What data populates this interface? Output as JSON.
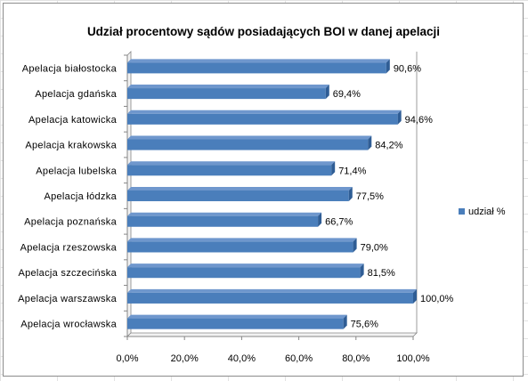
{
  "chart_data": {
    "type": "bar",
    "orientation": "horizontal",
    "title": "Udział procentowy sądów posiadających BOI w danej apelacji",
    "categories": [
      "Apelacja  białostocka",
      "Apelacja  gdańska",
      "Apelacja  katowicka",
      "Apelacja  krakowska",
      "Apelacja  lubelska",
      "Apelacja  łódzka",
      "Apelacja  poznańska",
      "Apelacja  rzeszowska",
      "Apelacja  szczecińska",
      "Apelacja  warszawska",
      "Apelacja  wrocławska"
    ],
    "series": [
      {
        "name": "udział %",
        "values": [
          90.6,
          69.4,
          94.6,
          84.2,
          71.4,
          77.5,
          66.7,
          79.0,
          81.5,
          100.0,
          75.6
        ],
        "labels": [
          "90,6%",
          "69,4%",
          "94,6%",
          "84,2%",
          "71,4%",
          "77,5%",
          "66,7%",
          "79,0%",
          "81,5%",
          "100,0%",
          "75,6%"
        ],
        "color": "#4a7ebb"
      }
    ],
    "xlim": [
      0,
      100
    ],
    "xticks": [
      0,
      20,
      40,
      60,
      80,
      100
    ],
    "xtick_labels": [
      "0,0%",
      "20,0%",
      "40,0%",
      "60,0%",
      "80,0%",
      "100,0%"
    ],
    "grid": false,
    "legend_position": "right"
  },
  "colors": {
    "bar_front": "#4a7ebb",
    "bar_top": "#6f97cd",
    "bar_side": "#2f5d95",
    "axis": "#868686",
    "wall": "#f2f2f2"
  }
}
